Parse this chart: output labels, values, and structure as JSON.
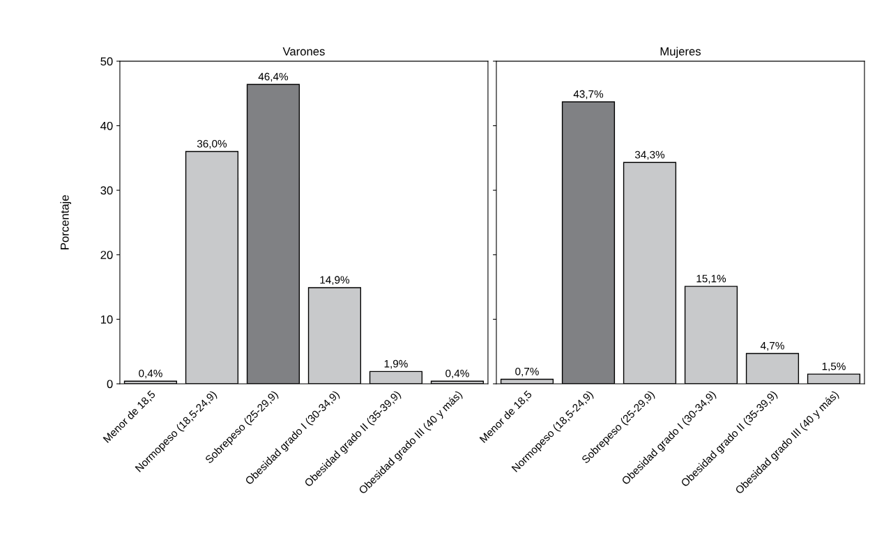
{
  "chart_data": [
    {
      "type": "bar",
      "title": "Varones",
      "ylabel": "Porcentaje",
      "categories": [
        "Menor de 18,5",
        "Normopeso (18,5-24,9)",
        "Sobrepeso (25-29,9)",
        "Obesidad grado I (30-34,9)",
        "Obesidad grado II (35-39,9)",
        "Obesidad grado III (40 y más)"
      ],
      "values": [
        0.4,
        36.0,
        46.4,
        14.9,
        1.9,
        0.4
      ],
      "colors": [
        "#c8c9cb",
        "#c8c9cb",
        "#808184",
        "#c8c9cb",
        "#c8c9cb",
        "#c8c9cb"
      ],
      "value_labels": [
        "0,4%",
        "36,0%",
        "46,4%",
        "14,9%",
        "1,9%",
        "0,4%"
      ],
      "ylim": [
        0,
        50
      ],
      "yticks": [
        0,
        10,
        20,
        30,
        40,
        50
      ]
    },
    {
      "type": "bar",
      "title": "Mujeres",
      "categories": [
        "Menor de 18,5",
        "Normopeso (18,5-24,9)",
        "Sobrepeso (25-29,9)",
        "Obesidad grado I (30-34,9)",
        "Obesidad grado II (35-39,9)",
        "Obesidad grado III (40 y más)"
      ],
      "values": [
        0.7,
        43.7,
        34.3,
        15.1,
        4.7,
        1.5
      ],
      "colors": [
        "#c8c9cb",
        "#808184",
        "#c8c9cb",
        "#c8c9cb",
        "#c8c9cb",
        "#c8c9cb"
      ],
      "value_labels": [
        "0,7%",
        "43,7%",
        "34,3%",
        "15,1%",
        "4,7%",
        "1,5%"
      ],
      "ylim": [
        0,
        50
      ],
      "yticks": [
        0,
        10,
        20,
        30,
        40,
        50
      ],
      "tick_labels": "x"
    }
  ]
}
